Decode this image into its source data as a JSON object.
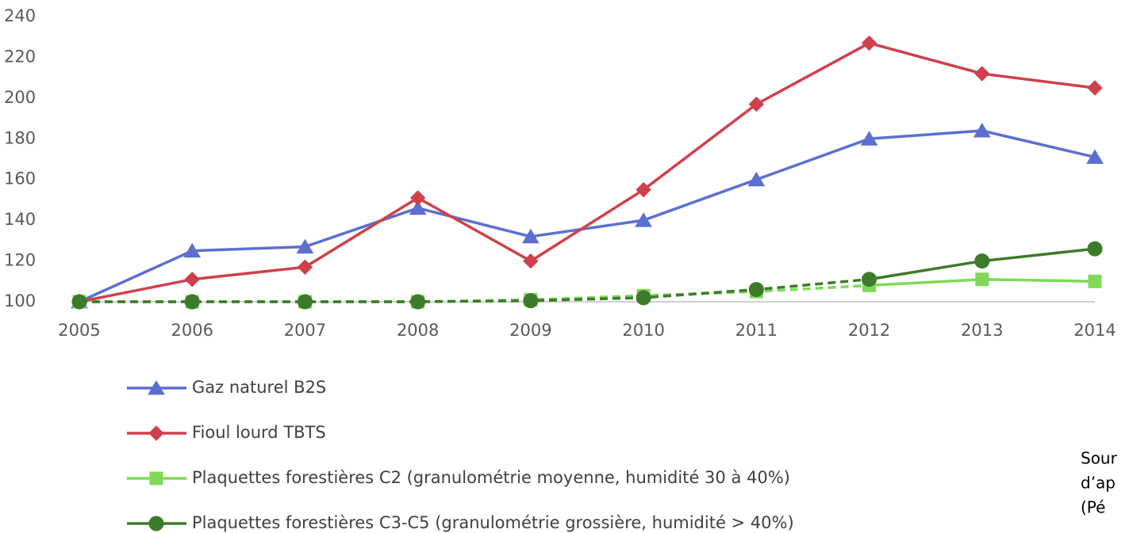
{
  "chart_data": {
    "type": "line",
    "categories": [
      "2005",
      "2006",
      "2007",
      "2008",
      "2009",
      "2010",
      "2011",
      "2012",
      "2013",
      "2014"
    ],
    "series": [
      {
        "name": "Gaz naturel B2S",
        "color": "#5b6fd0",
        "marker": "triangle",
        "values": [
          100,
          125,
          127,
          146,
          132,
          140,
          160,
          180,
          184,
          171
        ]
      },
      {
        "name": "Fioul lourd TBTS",
        "color": "#d0404a",
        "marker": "diamond",
        "values": [
          100,
          111,
          117,
          151,
          120,
          155,
          197,
          227,
          212,
          205
        ]
      },
      {
        "name": "Plaquettes forestières C2  (granulométrie moyenne, humidité 30 à 40%)",
        "color": "#7ed957",
        "marker": "square",
        "dashed_through": "2012",
        "values": [
          100,
          100,
          100,
          100,
          101,
          103,
          105,
          108,
          111,
          110
        ]
      },
      {
        "name": "Plaquettes forestières C3-C5 (granulométrie grossière, humidité > 40%)",
        "color": "#3d7a2a",
        "marker": "circle",
        "dashed_through": "2012",
        "values": [
          100,
          100,
          100,
          100,
          100.5,
          102,
          106,
          111,
          120,
          126
        ]
      }
    ],
    "ylim": [
      100,
      240
    ],
    "yticks": [
      100,
      120,
      140,
      160,
      180,
      200,
      220,
      240
    ],
    "grid": false,
    "legend": "bottom",
    "notes": [
      "Sour",
      "d’ap",
      "(Pé"
    ]
  }
}
